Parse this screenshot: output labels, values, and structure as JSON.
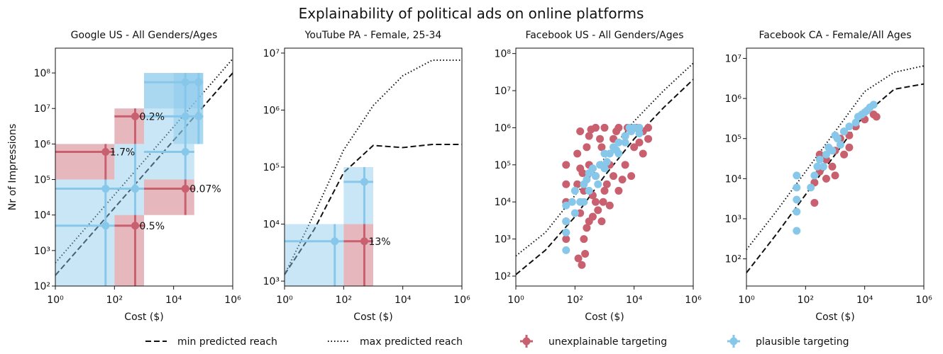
{
  "title": "Explainability of political ads on online platforms",
  "chart_data": [
    {
      "type": "scatter",
      "title": "Google US - All Genders/Ages",
      "xlabel": "Cost ($)",
      "ylabel": "Nr of Impressions",
      "xscale": "log",
      "yscale": "log",
      "xlim": [
        1,
        1000000
      ],
      "xticks": [
        {
          "value": 1,
          "label": "10⁰"
        },
        {
          "value": 100,
          "label": "10²"
        },
        {
          "value": 10000,
          "label": "10⁴"
        },
        {
          "value": 1000000,
          "label": "10⁶"
        }
      ],
      "ylim": [
        100,
        500000000
      ],
      "yticks": [
        {
          "value": 100,
          "label": "10²"
        },
        {
          "value": 1000,
          "label": "10³"
        },
        {
          "value": 10000,
          "label": "10⁴"
        },
        {
          "value": 100000,
          "label": "10⁵"
        },
        {
          "value": 1000000,
          "label": "10⁶"
        },
        {
          "value": 10000000,
          "label": "10⁷"
        },
        {
          "value": 100000000,
          "label": "10⁸"
        }
      ],
      "series": [
        {
          "name": "min predicted reach",
          "style": "dashed",
          "color": "#111111",
          "x": [
            1,
            1000000
          ],
          "values": [
            200,
            100000000
          ]
        },
        {
          "name": "max predicted reach",
          "style": "dotted",
          "color": "#111111",
          "x": [
            1,
            1000000
          ],
          "values": [
            450,
            250000000
          ]
        },
        {
          "name": "unexplainable targeting",
          "style": "box",
          "color": "#c9606f",
          "x": [
            50,
            500,
            25000,
            500
          ],
          "values": [
            600000,
            6000000,
            55000,
            5000
          ],
          "x_range": [
            [
              1,
              100
            ],
            [
              100,
              1000
            ],
            [
              1000,
              50000
            ],
            [
              100,
              1000
            ]
          ],
          "y_range": [
            [
              100000,
              1000000
            ],
            [
              1000000,
              10000000
            ],
            [
              10000,
              100000
            ],
            [
              100,
              10000
            ]
          ],
          "labels": [
            "1.7%",
            "0.2%",
            "0.07%",
            "0.5%"
          ]
        },
        {
          "name": "plausible targeting",
          "style": "box",
          "color": "#87c8ea",
          "x": [
            50,
            50,
            500,
            25000,
            25000,
            25000,
            70000,
            70000
          ],
          "values": [
            5000,
            55000,
            55000,
            600000,
            6000000,
            55000000,
            55000000,
            6000000
          ],
          "x_range": [
            [
              1,
              100
            ],
            [
              1,
              100
            ],
            [
              100,
              1000
            ],
            [
              1000,
              50000
            ],
            [
              1000,
              100000
            ],
            [
              1000,
              100000
            ],
            [
              10000,
              100000
            ],
            [
              10000,
              100000
            ]
          ],
          "y_range": [
            [
              100,
              10000
            ],
            [
              10000,
              100000
            ],
            [
              10000,
              1000000
            ],
            [
              100000,
              1000000
            ],
            [
              1000000,
              100000000
            ],
            [
              10000000,
              100000000
            ],
            [
              10000000,
              100000000
            ],
            [
              1000000,
              10000000
            ]
          ]
        }
      ]
    },
    {
      "type": "scatter",
      "title": "YouTube PA - Female, 25-34",
      "xlabel": "Cost ($)",
      "xscale": "log",
      "yscale": "log",
      "xlim": [
        1,
        1000000
      ],
      "xticks": [
        {
          "value": 1,
          "label": "10⁰"
        },
        {
          "value": 100,
          "label": "10²"
        },
        {
          "value": 10000,
          "label": "10⁴"
        },
        {
          "value": 1000000,
          "label": "10⁶"
        }
      ],
      "ylim": [
        820,
        12200000
      ],
      "yticks": [
        {
          "value": 1000,
          "label": "10³"
        },
        {
          "value": 10000,
          "label": "10⁴"
        },
        {
          "value": 100000,
          "label": "10⁵"
        },
        {
          "value": 1000000,
          "label": "10⁶"
        },
        {
          "value": 10000000,
          "label": "10⁷"
        }
      ],
      "series": [
        {
          "style": "dashed",
          "color": "#111111",
          "x": [
            1,
            10,
            100,
            1000,
            10000,
            100000,
            1000000
          ],
          "values": [
            1300,
            8000,
            80000,
            240000,
            220000,
            250000,
            250000
          ]
        },
        {
          "style": "dotted",
          "color": "#111111",
          "x": [
            1,
            10,
            100,
            1000,
            10000,
            100000,
            1000000
          ],
          "values": [
            1300,
            15000,
            200000,
            1200000,
            4000000,
            7500000,
            7500000
          ]
        },
        {
          "style": "box",
          "color": "#c9606f",
          "x": [
            500
          ],
          "values": [
            5000
          ],
          "x_range": [
            [
              100,
              1000
            ]
          ],
          "y_range": [
            [
              820,
              10000
            ]
          ],
          "labels": [
            "13%"
          ]
        },
        {
          "style": "box",
          "color": "#87c8ea",
          "x": [
            50,
            500
          ],
          "values": [
            5000,
            55000
          ],
          "x_range": [
            [
              1,
              100
            ],
            [
              100,
              1000
            ]
          ],
          "y_range": [
            [
              820,
              10000
            ],
            [
              10000,
              100000
            ]
          ]
        }
      ]
    },
    {
      "type": "scatter",
      "title": "Facebook  US - All Genders/Ages",
      "xlabel": "Cost ($)",
      "xscale": "log",
      "yscale": "log",
      "xlim": [
        1,
        1000000
      ],
      "xticks": [
        {
          "value": 1,
          "label": "10⁰"
        },
        {
          "value": 100,
          "label": "10²"
        },
        {
          "value": 10000,
          "label": "10⁴"
        },
        {
          "value": 1000000,
          "label": "10⁶"
        }
      ],
      "ylim": [
        54,
        140000000
      ],
      "yticks": [
        {
          "value": 100,
          "label": "10²"
        },
        {
          "value": 1000,
          "label": "10³"
        },
        {
          "value": 10000,
          "label": "10⁴"
        },
        {
          "value": 100000,
          "label": "10⁵"
        },
        {
          "value": 1000000,
          "label": "10⁶"
        },
        {
          "value": 10000000,
          "label": "10⁷"
        },
        {
          "value": 100000000,
          "label": "10⁸"
        }
      ],
      "series": [
        {
          "style": "dashed",
          "color": "#111111",
          "x": [
            1,
            10,
            100,
            1000,
            10000,
            100000,
            1000000
          ],
          "values": [
            110,
            500,
            4000,
            50000,
            500000,
            3500000,
            20000000
          ]
        },
        {
          "style": "dotted",
          "color": "#111111",
          "x": [
            1,
            10,
            100,
            1000,
            10000,
            100000,
            1000000
          ],
          "values": [
            350,
            1500,
            15000,
            150000,
            1500000,
            10000000,
            55000000
          ]
        },
        {
          "style": "point",
          "color": "#c9606f",
          "x": [
            50,
            50,
            50,
            50,
            50,
            130,
            170,
            220,
            120,
            120,
            150,
            150,
            200,
            200,
            300,
            300,
            300,
            500,
            500,
            500,
            800,
            800,
            1000,
            1000,
            1500,
            1500,
            2000,
            2000,
            3000,
            3000,
            5000,
            5000,
            8000,
            10000,
            10000,
            20000,
            20000,
            30000,
            30000,
            250,
            400,
            600,
            700,
            1200,
            2500,
            4000,
            6000,
            15000,
            12000,
            150,
            250,
            400,
            900,
            180,
            350
          ],
          "values": [
            1000,
            3000,
            10000,
            30000,
            100000,
            300,
            200,
            400,
            30000,
            200000,
            5000,
            800000,
            1000,
            20000,
            3000,
            100000,
            600000,
            10000,
            50000,
            1000000,
            3000,
            300000,
            20000,
            1000000,
            8000,
            100000,
            50000,
            500000,
            20000,
            1000000,
            100000,
            600000,
            50000,
            300000,
            1000000,
            200000,
            800000,
            1000000,
            500000,
            2000,
            4000,
            6000,
            500000,
            30000,
            800000,
            40000,
            1000000,
            400000,
            1000000,
            80000,
            300000,
            15000,
            10000,
            60000,
            900000
          ]
        },
        {
          "style": "point",
          "color": "#87c8ea",
          "x": [
            50,
            50,
            50,
            50,
            100,
            100,
            150,
            200,
            300,
            300,
            500,
            700,
            1000,
            1000,
            1500,
            2000,
            3000,
            3000,
            5000,
            5000,
            8000,
            10000,
            15000,
            15000,
            7000,
            200,
            400,
            600,
            80,
            250,
            1200,
            2500
          ],
          "values": [
            500,
            1500,
            3000,
            8000,
            5000,
            20000,
            10000,
            30000,
            20000,
            60000,
            50000,
            100000,
            80000,
            200000,
            200000,
            300000,
            400000,
            200000,
            600000,
            400000,
            800000,
            1000000,
            1000000,
            700000,
            1000000,
            10000,
            80000,
            30000,
            10000,
            40000,
            120000,
            250000
          ]
        }
      ]
    },
    {
      "type": "scatter",
      "title": "Facebook CA - Female/All Ages",
      "xlabel": "Cost ($)",
      "xscale": "log",
      "yscale": "log",
      "xlim": [
        1,
        1000000
      ],
      "xticks": [
        {
          "value": 1,
          "label": "10⁰"
        },
        {
          "value": 100,
          "label": "10²"
        },
        {
          "value": 10000,
          "label": "10⁴"
        },
        {
          "value": 1000000,
          "label": "10⁶"
        }
      ],
      "ylim": [
        21,
        18000000
      ],
      "yticks": [
        {
          "value": 100,
          "label": "10²"
        },
        {
          "value": 1000,
          "label": "10³"
        },
        {
          "value": 10000,
          "label": "10⁴"
        },
        {
          "value": 100000,
          "label": "10⁵"
        },
        {
          "value": 1000000,
          "label": "10⁶"
        },
        {
          "value": 10000000,
          "label": "10⁷"
        }
      ],
      "series": [
        {
          "style": "dashed",
          "color": "#111111",
          "x": [
            1,
            10,
            100,
            1000,
            10000,
            100000,
            1000000
          ],
          "values": [
            45,
            400,
            4000,
            40000,
            400000,
            1700000,
            2300000
          ]
        },
        {
          "style": "dotted",
          "color": "#111111",
          "x": [
            1,
            10,
            100,
            1000,
            10000,
            100000,
            1000000
          ],
          "values": [
            170,
            1500,
            15000,
            150000,
            1500000,
            4500000,
            6500000
          ]
        },
        {
          "style": "point",
          "color": "#c9606f",
          "x": [
            200,
            200,
            300,
            300,
            500,
            500,
            800,
            1000,
            1000,
            1500,
            2000,
            2000,
            3000,
            3000,
            5000,
            10000,
            20000,
            25000
          ],
          "values": [
            2500,
            8000,
            15000,
            40000,
            10000,
            30000,
            20000,
            50000,
            12000,
            100000,
            40000,
            150000,
            60000,
            120000,
            200000,
            300000,
            400000,
            350000
          ]
        },
        {
          "style": "point",
          "color": "#87c8ea",
          "x": [
            50,
            50,
            50,
            50,
            50,
            150,
            200,
            250,
            300,
            400,
            500,
            600,
            800,
            1000,
            1200,
            1500,
            2000,
            3000,
            5000,
            6000,
            8000,
            10000,
            12000,
            15000,
            20000
          ],
          "values": [
            500,
            1500,
            3000,
            6000,
            12000,
            6000,
            12000,
            20000,
            30000,
            20000,
            40000,
            60000,
            50000,
            120000,
            100000,
            70000,
            150000,
            200000,
            250000,
            350000,
            400000,
            450000,
            500000,
            600000,
            700000
          ]
        }
      ]
    }
  ]
}
